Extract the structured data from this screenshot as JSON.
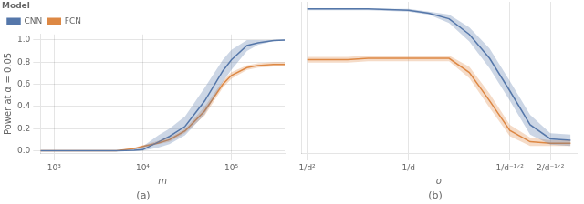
{
  "chart_data": [
    {
      "type": "line",
      "xlabel": "m",
      "ylabel": "Power at α = 0.05",
      "annotations": [
        "(a)"
      ],
      "log": "x",
      "xlim": [
        700,
        400000
      ],
      "ylim": [
        -0.02,
        1.05
      ],
      "xticks": [
        {
          "value": 1000,
          "label": "10³"
        },
        {
          "value": 10000,
          "label": "10⁴"
        },
        {
          "value": 100000,
          "label": "10⁵"
        }
      ],
      "yticks": [
        {
          "value": 0.0,
          "label": "0.0"
        },
        0.2,
        0.4,
        0.6,
        0.8,
        {
          "value": 1.0,
          "label": "1.0"
        }
      ],
      "grid": true,
      "legend": "upper left",
      "legend_title": "Model",
      "x": [
        700,
        1000,
        2000,
        5000,
        8000,
        10000,
        15000,
        20000,
        30000,
        50000,
        80000,
        100000,
        150000,
        200000,
        300000,
        400000
      ],
      "series": [
        {
          "name": "CNN",
          "color": "#5577aa",
          "values": [
            0.0,
            0.0,
            0.0,
            0.0,
            0.005,
            0.01,
            0.08,
            0.13,
            0.22,
            0.45,
            0.72,
            0.82,
            0.95,
            0.975,
            0.995,
            1.0
          ],
          "lower": [
            0.0,
            0.0,
            0.0,
            0.0,
            0.0,
            0.0,
            0.03,
            0.06,
            0.14,
            0.33,
            0.62,
            0.73,
            0.9,
            0.955,
            0.99,
            0.99
          ],
          "upper": [
            0.0,
            0.0,
            0.0,
            0.0,
            0.015,
            0.04,
            0.14,
            0.2,
            0.31,
            0.57,
            0.82,
            0.91,
            1.0,
            1.0,
            1.0,
            1.0
          ]
        },
        {
          "name": "FCN",
          "color": "#dd8844",
          "values": [
            0.0,
            0.0,
            0.0,
            0.0,
            0.02,
            0.04,
            0.07,
            0.1,
            0.18,
            0.36,
            0.6,
            0.68,
            0.75,
            0.77,
            0.78,
            0.78
          ],
          "lower": [
            0.0,
            0.0,
            0.0,
            0.0,
            0.01,
            0.03,
            0.06,
            0.08,
            0.16,
            0.32,
            0.57,
            0.65,
            0.73,
            0.75,
            0.76,
            0.76
          ],
          "upper": [
            0.0,
            0.0,
            0.0,
            0.0,
            0.03,
            0.05,
            0.09,
            0.12,
            0.2,
            0.4,
            0.63,
            0.71,
            0.77,
            0.79,
            0.8,
            0.8
          ]
        }
      ]
    },
    {
      "type": "line",
      "xlabel": "σ",
      "annotations": [
        "(b)"
      ],
      "xlim": [
        -0.3,
        13.3
      ],
      "ylim": [
        -0.02,
        1.05
      ],
      "xticks": [
        {
          "value": 0,
          "label": "1/d²"
        },
        {
          "value": 5,
          "label": "1/d"
        },
        {
          "value": 10,
          "label": "1/d⁻¹ᐟ²"
        },
        {
          "value": 12,
          "label": "2/d⁻¹ᐟ²"
        }
      ],
      "tick_labels": "x",
      "grid": true,
      "legend": false,
      "x": [
        0,
        1,
        2,
        3,
        4,
        5,
        6,
        7,
        8,
        9,
        10,
        11,
        12,
        13
      ],
      "series": [
        {
          "name": "CNN",
          "color": "#5577aa",
          "values": [
            1.0,
            1.0,
            1.0,
            1.0,
            0.995,
            0.99,
            0.97,
            0.93,
            0.82,
            0.65,
            0.42,
            0.18,
            0.08,
            0.07
          ],
          "lower": [
            0.99,
            0.99,
            0.99,
            0.99,
            0.985,
            0.98,
            0.96,
            0.9,
            0.77,
            0.58,
            0.35,
            0.11,
            0.04,
            0.03
          ],
          "upper": [
            1.0,
            1.0,
            1.0,
            1.0,
            1.0,
            1.0,
            0.98,
            0.96,
            0.87,
            0.72,
            0.49,
            0.25,
            0.12,
            0.11
          ]
        },
        {
          "name": "FCN",
          "color": "#dd8844",
          "values": [
            0.64,
            0.64,
            0.64,
            0.65,
            0.65,
            0.65,
            0.65,
            0.65,
            0.55,
            0.35,
            0.14,
            0.06,
            0.05,
            0.05
          ],
          "lower": [
            0.62,
            0.62,
            0.62,
            0.63,
            0.63,
            0.63,
            0.63,
            0.63,
            0.51,
            0.3,
            0.1,
            0.03,
            0.03,
            0.03
          ],
          "upper": [
            0.66,
            0.66,
            0.66,
            0.67,
            0.67,
            0.67,
            0.67,
            0.67,
            0.59,
            0.4,
            0.18,
            0.09,
            0.07,
            0.07
          ]
        }
      ]
    }
  ]
}
